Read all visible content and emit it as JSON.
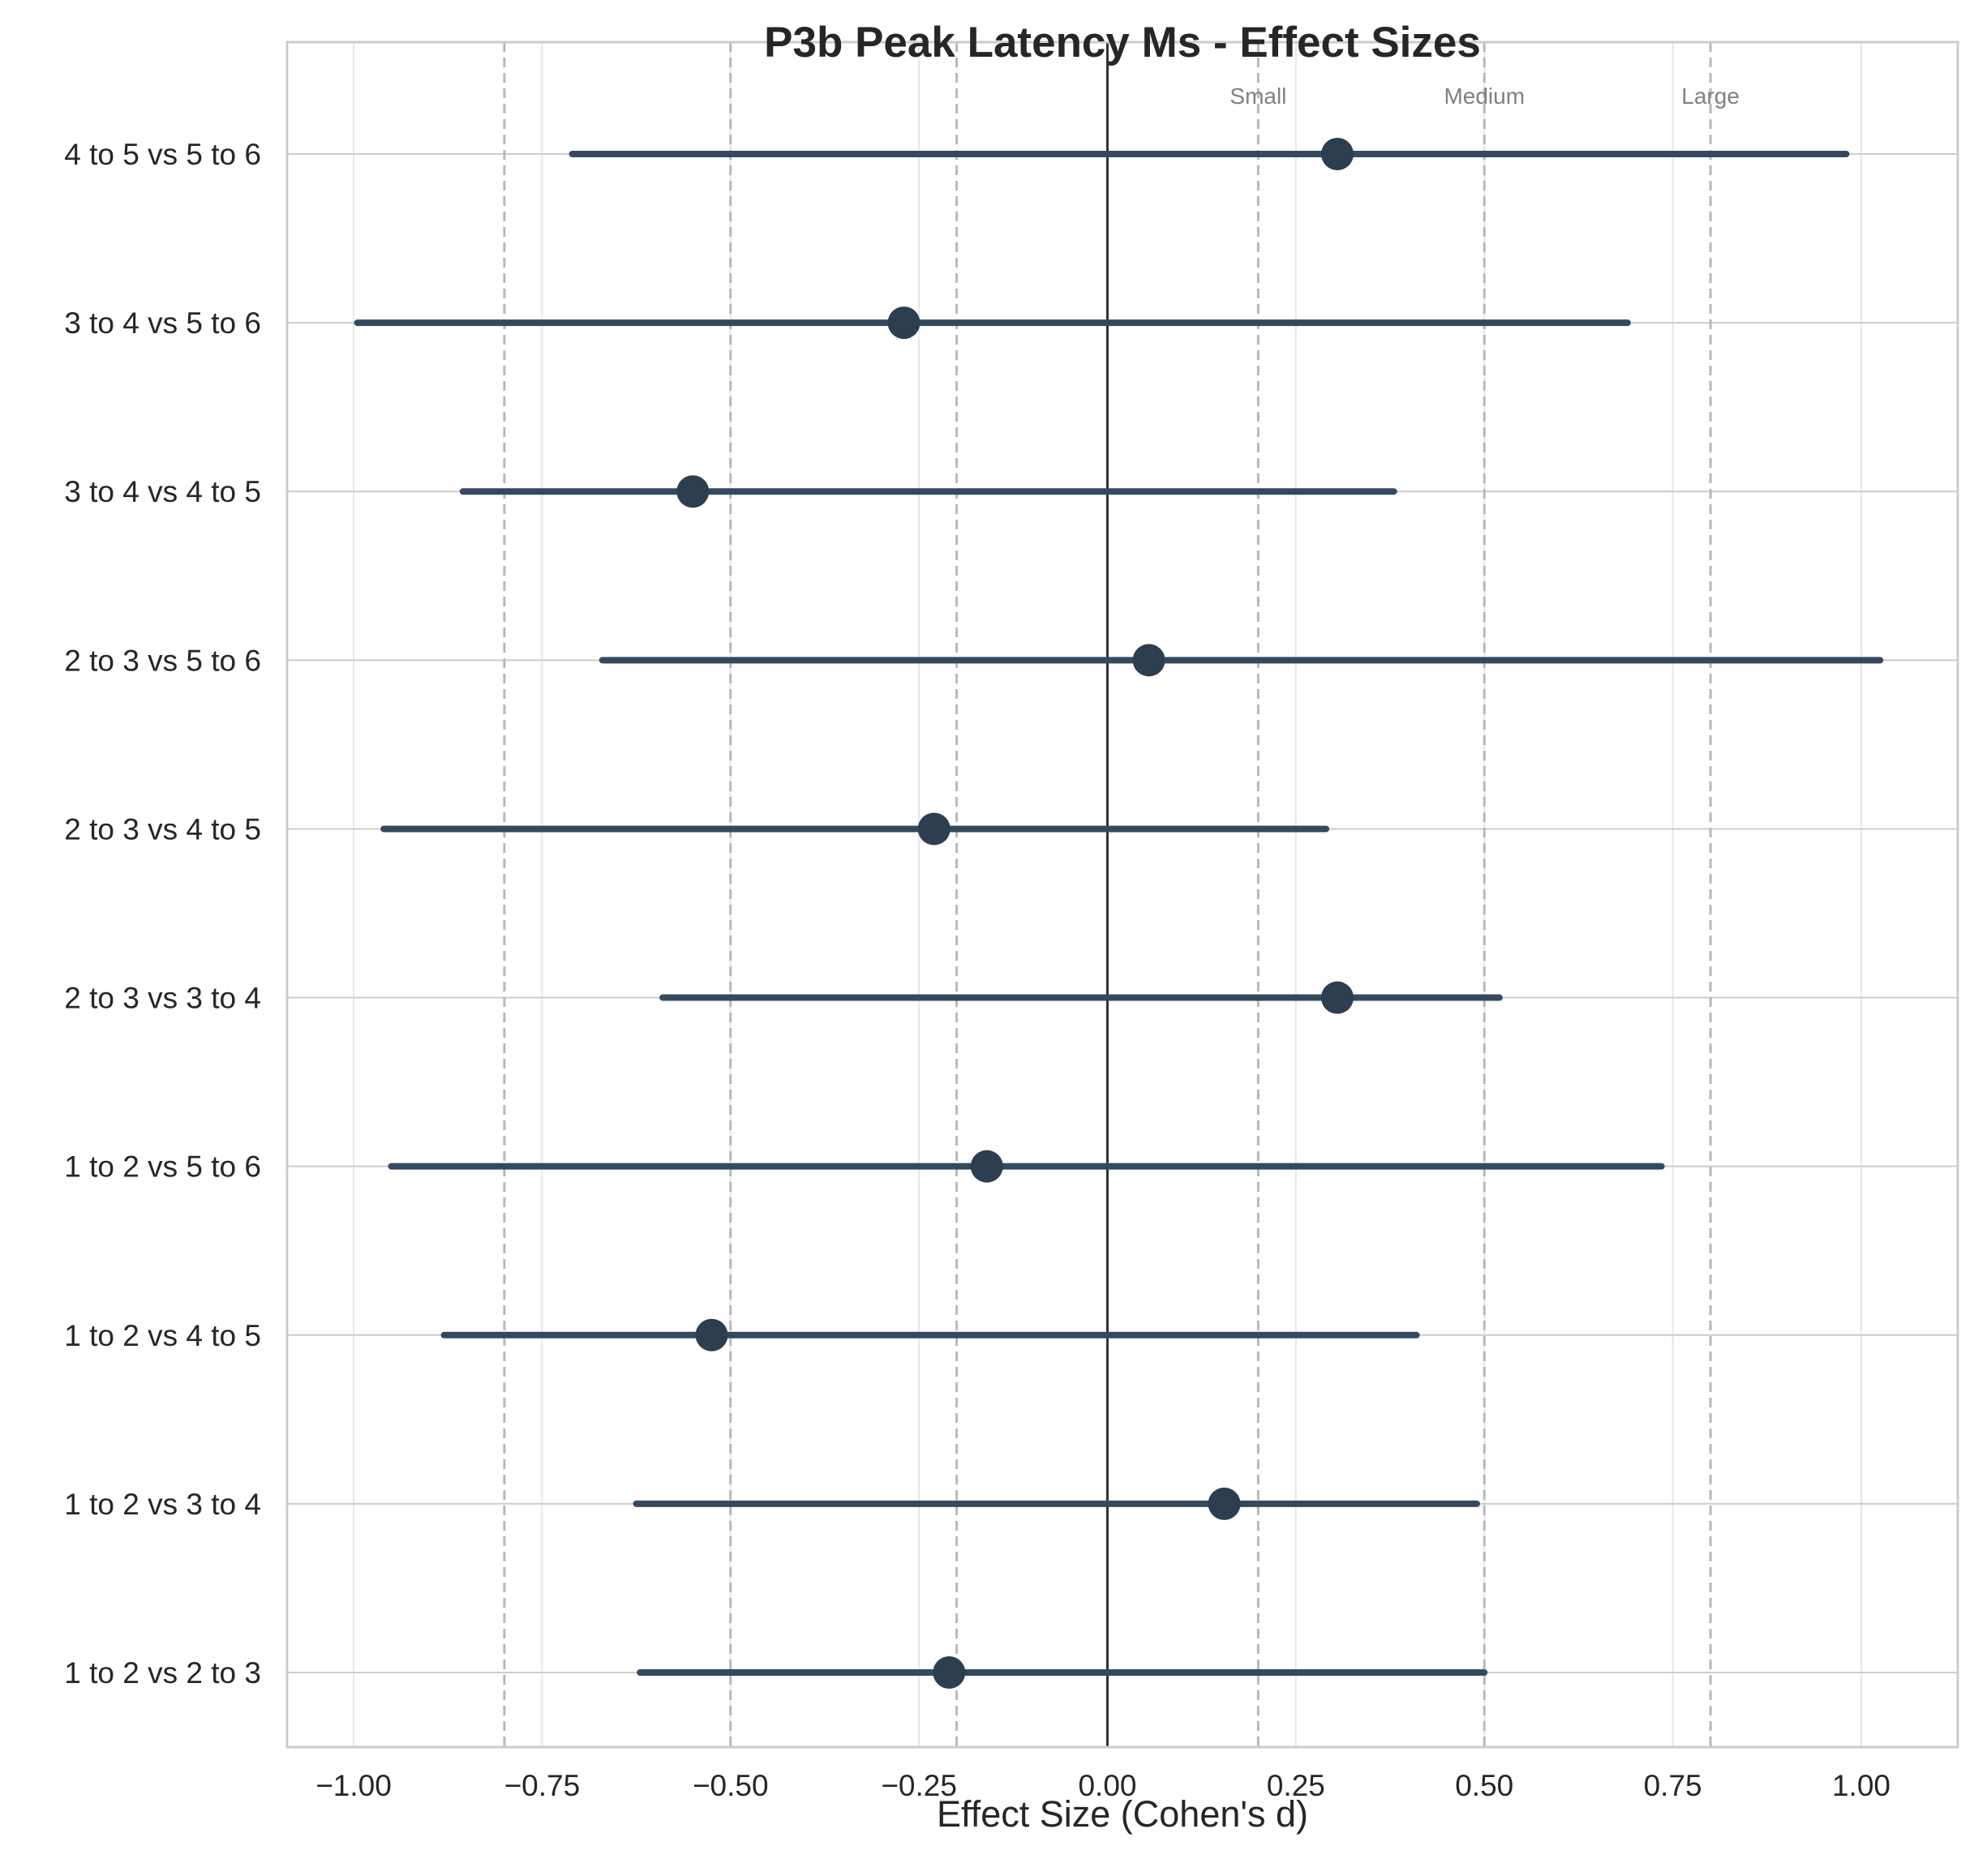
{
  "chart_data": {
    "type": "forest",
    "title": "P3b Peak Latency Ms - Effect Sizes",
    "xlabel": "Effect Size (Cohen's d)",
    "ylabel": "",
    "xlim": [
      -1.1,
      1.12
    ],
    "xticks": [
      -1.0,
      -0.75,
      -0.5,
      -0.25,
      0.0,
      0.25,
      0.5,
      0.75,
      1.0
    ],
    "xtick_labels": [
      "−1.00",
      "−0.75",
      "−0.50",
      "−0.25",
      "0.00",
      "0.25",
      "0.50",
      "0.75",
      "1.00"
    ],
    "grid": true,
    "zero_line": 0.0,
    "thresholds": {
      "values": [
        -0.8,
        -0.5,
        -0.2,
        0.2,
        0.5,
        0.8
      ],
      "labels": [
        {
          "text": "Small",
          "x": 0.2
        },
        {
          "text": "Medium",
          "x": 0.5
        },
        {
          "text": "Large",
          "x": 0.8
        }
      ]
    },
    "comparisons": [
      {
        "label": "1 to 2 vs 2 to 3",
        "d": -0.21,
        "ci_low": -0.62,
        "ci_high": 0.5
      },
      {
        "label": "1 to 2 vs 3 to 4",
        "d": 0.155,
        "ci_low": -0.625,
        "ci_high": 0.49
      },
      {
        "label": "1 to 2 vs 4 to 5",
        "d": -0.525,
        "ci_low": -0.88,
        "ci_high": 0.41
      },
      {
        "label": "1 to 2 vs 5 to 6",
        "d": -0.16,
        "ci_low": -0.95,
        "ci_high": 0.735
      },
      {
        "label": "2 to 3 vs 3 to 4",
        "d": 0.305,
        "ci_low": -0.59,
        "ci_high": 0.52
      },
      {
        "label": "2 to 3 vs 4 to 5",
        "d": -0.23,
        "ci_low": -0.96,
        "ci_high": 0.29
      },
      {
        "label": "2 to 3 vs 5 to 6",
        "d": 0.055,
        "ci_low": -0.67,
        "ci_high": 1.025
      },
      {
        "label": "3 to 4 vs 4 to 5",
        "d": -0.55,
        "ci_low": -0.855,
        "ci_high": 0.38
      },
      {
        "label": "3 to 4 vs 5 to 6",
        "d": -0.27,
        "ci_low": -0.995,
        "ci_high": 0.69
      },
      {
        "label": "4 to 5 vs 5 to 6",
        "d": 0.305,
        "ci_low": -0.71,
        "ci_high": 0.98
      }
    ],
    "colors": {
      "marker": "#2c3e50",
      "ci_line": "#34495e",
      "zero_line": "#333333",
      "threshold_line": "#b8b8b8",
      "grid": "#e6e6e6",
      "axes_edge": "#cccccc"
    }
  }
}
